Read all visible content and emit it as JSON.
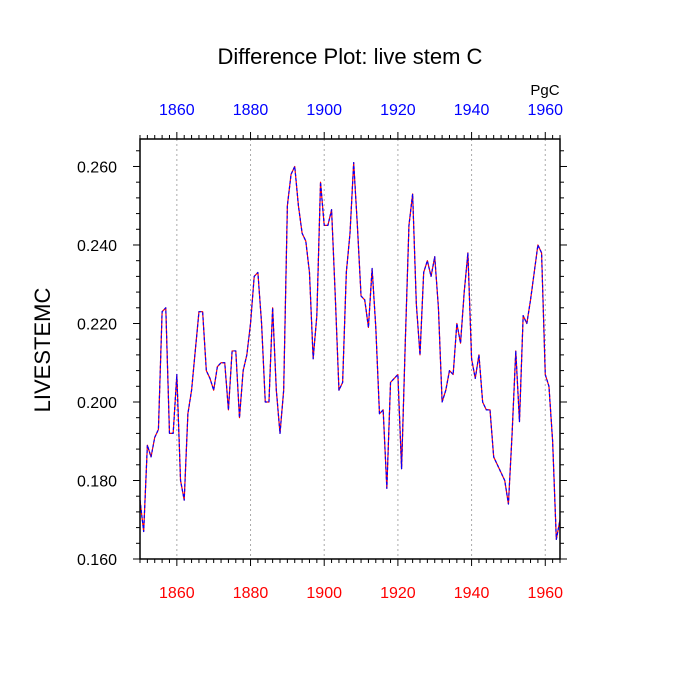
{
  "chart_data": {
    "type": "line",
    "title": "Difference Plot: live stem C",
    "ylabel": "LIVESTEMC",
    "units_label": "PgC",
    "xlim": [
      1850,
      1964
    ],
    "ylim": [
      0.16,
      0.267
    ],
    "grid": "vertical dotted lines at x major ticks",
    "x_ticks": [
      1860,
      1880,
      1900,
      1920,
      1940,
      1960
    ],
    "x_tick_labels": [
      "1860",
      "1880",
      "1900",
      "1920",
      "1940",
      "1960"
    ],
    "y_ticks": [
      0.16,
      0.18,
      0.2,
      0.22,
      0.24,
      0.26
    ],
    "y_tick_labels": [
      "0.160",
      "0.180",
      "0.200",
      "0.220",
      "0.240",
      "0.260"
    ],
    "colors": {
      "bottom_axis_labels": "#ff0000",
      "top_axis_labels": "#0000ff",
      "line_red": "#ff0000",
      "line_blue": "#0000ff"
    },
    "series": [
      {
        "line_color": "#6a00c8",
        "x": [
          1850,
          1851,
          1852,
          1853,
          1854,
          1855,
          1856,
          1857,
          1858,
          1859,
          1860,
          1861,
          1862,
          1863,
          1864,
          1865,
          1866,
          1867,
          1868,
          1869,
          1870,
          1871,
          1872,
          1873,
          1874,
          1875,
          1876,
          1877,
          1878,
          1879,
          1880,
          1881,
          1882,
          1883,
          1884,
          1885,
          1886,
          1887,
          1888,
          1889,
          1890,
          1891,
          1892,
          1893,
          1894,
          1895,
          1896,
          1897,
          1898,
          1899,
          1900,
          1901,
          1902,
          1903,
          1904,
          1905,
          1906,
          1907,
          1908,
          1909,
          1910,
          1911,
          1912,
          1913,
          1914,
          1915,
          1916,
          1917,
          1918,
          1919,
          1920,
          1921,
          1922,
          1923,
          1924,
          1925,
          1926,
          1927,
          1928,
          1929,
          1930,
          1931,
          1932,
          1933,
          1934,
          1935,
          1936,
          1937,
          1938,
          1939,
          1940,
          1941,
          1942,
          1943,
          1944,
          1945,
          1946,
          1947,
          1948,
          1949,
          1950,
          1951,
          1952,
          1953,
          1954,
          1955,
          1956,
          1957,
          1958,
          1959,
          1960,
          1961,
          1962,
          1963,
          1964
        ],
        "y": [
          0.175,
          0.167,
          0.189,
          0.186,
          0.191,
          0.193,
          0.223,
          0.224,
          0.192,
          0.192,
          0.207,
          0.18,
          0.175,
          0.197,
          0.203,
          0.213,
          0.223,
          0.223,
          0.208,
          0.206,
          0.203,
          0.209,
          0.21,
          0.21,
          0.198,
          0.213,
          0.213,
          0.196,
          0.208,
          0.212,
          0.22,
          0.232,
          0.233,
          0.22,
          0.2,
          0.2,
          0.224,
          0.203,
          0.192,
          0.203,
          0.25,
          0.258,
          0.26,
          0.25,
          0.243,
          0.241,
          0.233,
          0.211,
          0.222,
          0.256,
          0.245,
          0.245,
          0.249,
          0.227,
          0.203,
          0.205,
          0.233,
          0.243,
          0.261,
          0.245,
          0.227,
          0.226,
          0.219,
          0.234,
          0.219,
          0.197,
          0.198,
          0.178,
          0.205,
          0.206,
          0.207,
          0.183,
          0.215,
          0.245,
          0.253,
          0.225,
          0.212,
          0.233,
          0.236,
          0.232,
          0.237,
          0.224,
          0.2,
          0.203,
          0.208,
          0.207,
          0.22,
          0.215,
          0.228,
          0.238,
          0.211,
          0.206,
          0.212,
          0.2,
          0.198,
          0.198,
          0.186,
          0.184,
          0.182,
          0.18,
          0.174,
          0.192,
          0.213,
          0.195,
          0.222,
          0.22,
          0.226,
          0.233,
          0.24,
          0.238,
          0.207,
          0.204,
          0.19,
          0.165,
          0.17
        ]
      }
    ]
  }
}
